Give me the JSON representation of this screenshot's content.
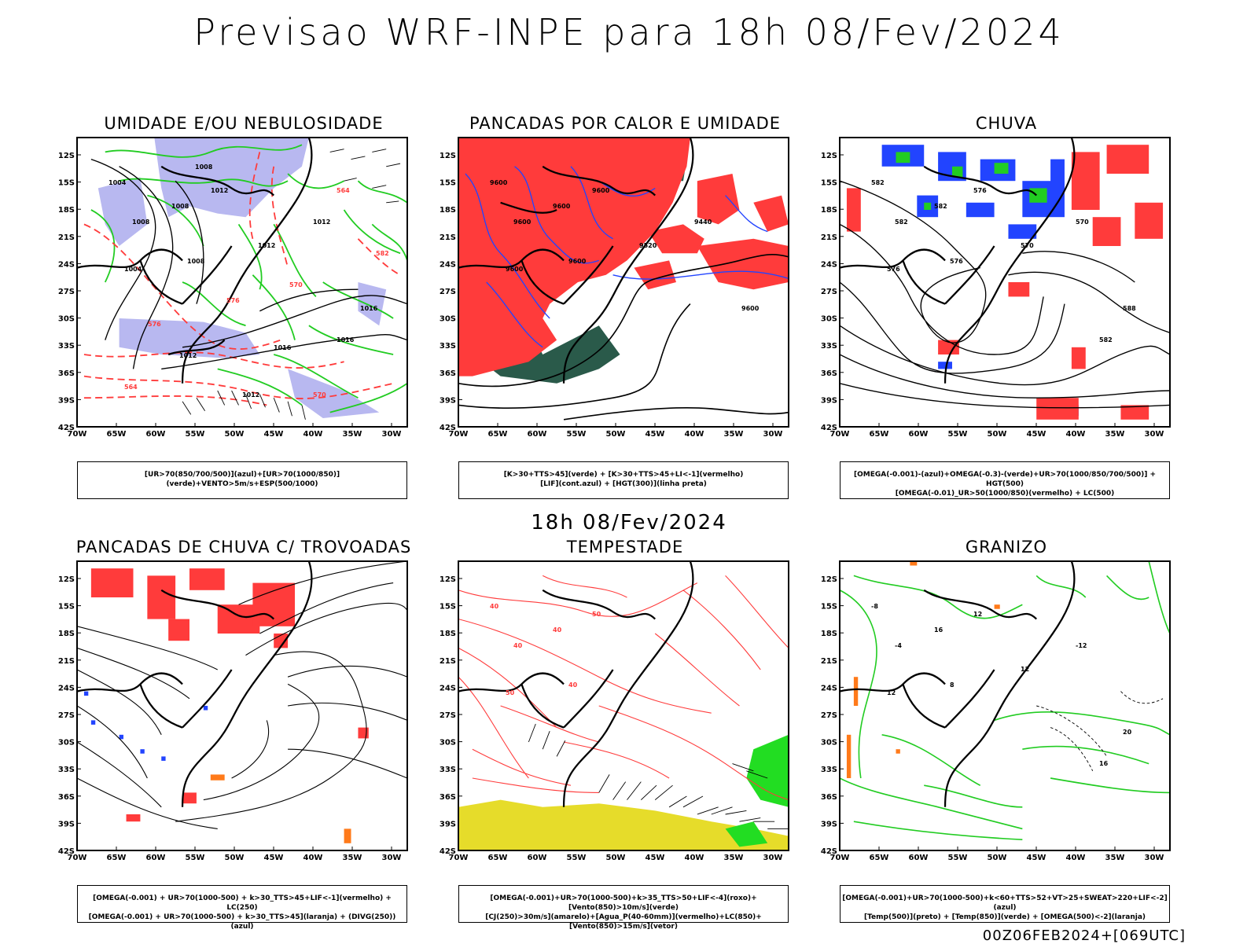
{
  "header": {
    "title": "Previsao WRF-INPE  para 18h 08/Fev/2024"
  },
  "middle": {
    "title": "18h 08/Fev/2024"
  },
  "footer": {
    "run": "00Z06FEB2024+[069UTC]"
  },
  "axes": {
    "lat": [
      "12S",
      "15S",
      "18S",
      "21S",
      "24S",
      "27S",
      "30S",
      "33S",
      "36S",
      "39S",
      "42S"
    ],
    "lon": [
      "70W",
      "65W",
      "60W",
      "55W",
      "50W",
      "45W",
      "40W",
      "35W",
      "30W"
    ]
  },
  "panels": [
    {
      "id": "umidade",
      "title": "UMIDADE E/OU NEBULOSIDADE",
      "legend": [
        "[UR>70(850/700/500)](azul)+[UR>70(1000/850)](verde)+VENTO>5m/s+ESP(500/1000)"
      ],
      "contour_labels": [
        "1004",
        "1008",
        "1008",
        "1012",
        "1004",
        "1008",
        "1012",
        "1012",
        "1016",
        "1016",
        "1016",
        "1012",
        "1012",
        "570",
        "576",
        "582",
        "576",
        "570",
        "564",
        "564",
        "1008"
      ]
    },
    {
      "id": "pancadas-calor",
      "title": "PANCADAS POR CALOR E UMIDADE",
      "legend": [
        "[K>30+TTS>45](verde) + [K>30+TTS>45+LI<-1](vermelho)",
        "[LIF](cont.azul) + [HGT(300)](linha preta)"
      ],
      "contour_labels": [
        "9600",
        "9600",
        "9600",
        "9600",
        "9600",
        "9600",
        "9520",
        "9440",
        "9600"
      ]
    },
    {
      "id": "chuva",
      "title": "CHUVA",
      "legend": [
        "[OMEGA(-0.001)-(azul)+OMEGA(-0.3)-(verde)+UR>70(1000/850/700/500)] + HGT(500)",
        "[OMEGA(-0.01)_UR>50(1000/850)(vermelho) + LC(500)"
      ],
      "contour_labels": [
        "582",
        "582",
        "582",
        "576",
        "576",
        "576",
        "570",
        "570",
        "588",
        "582"
      ]
    },
    {
      "id": "pancadas-trovoadas",
      "title": "PANCADAS DE CHUVA C/ TROVOADAS",
      "legend": [
        "[OMEGA(-0.001) + UR>70(1000-500) + k>30_TTS>45+LIF<-1](vermelho) + LC(250)",
        "[OMEGA(-0.001) + UR>70(1000-500) + k>30_TTS>45](laranja) + (DIVG(250))(azul)"
      ],
      "contour_labels": []
    },
    {
      "id": "tempestade",
      "title": "TEMPESTADE",
      "legend": [
        "[OMEGA(-0.001)+UR>70(1000-500)+k>35_TTS>50+LIF<-4](roxo)+[Vento(850)>10m/s](verde)",
        "[CJ(250)>30m/s](amarelo)+[Agua_P(40-60mm)](vermelho)+LC(850)+[Vento(850)>15m/s](vetor)"
      ],
      "contour_labels": [
        "40",
        "40",
        "40",
        "50",
        "50",
        "40"
      ]
    },
    {
      "id": "granizo",
      "title": "GRANIZO",
      "legend": [
        "[OMEGA(-0.001)+UR>70(1000-500)+k<60+TTS>52+VT>25+SWEAT>220+LIF<-2](azul)",
        "[Temp(500)](preto) + [Temp(850)](verde) + [OMEGA(500)<-2](laranja)"
      ],
      "contour_labels": [
        "-8",
        "-4",
        "16",
        "12",
        "12",
        "8",
        "12",
        "-12",
        "20",
        "16"
      ]
    }
  ],
  "colors": {
    "coast": "#000000",
    "rh_blue": "#b0b0ee",
    "rh_green": "#22cc22",
    "red": "#ff3b3b",
    "dark_green": "#2a5a4a",
    "blue_line": "#2244ff",
    "orange": "#ff7a1a",
    "yellow": "#e6dc2a",
    "wind_green": "#22dd22"
  }
}
